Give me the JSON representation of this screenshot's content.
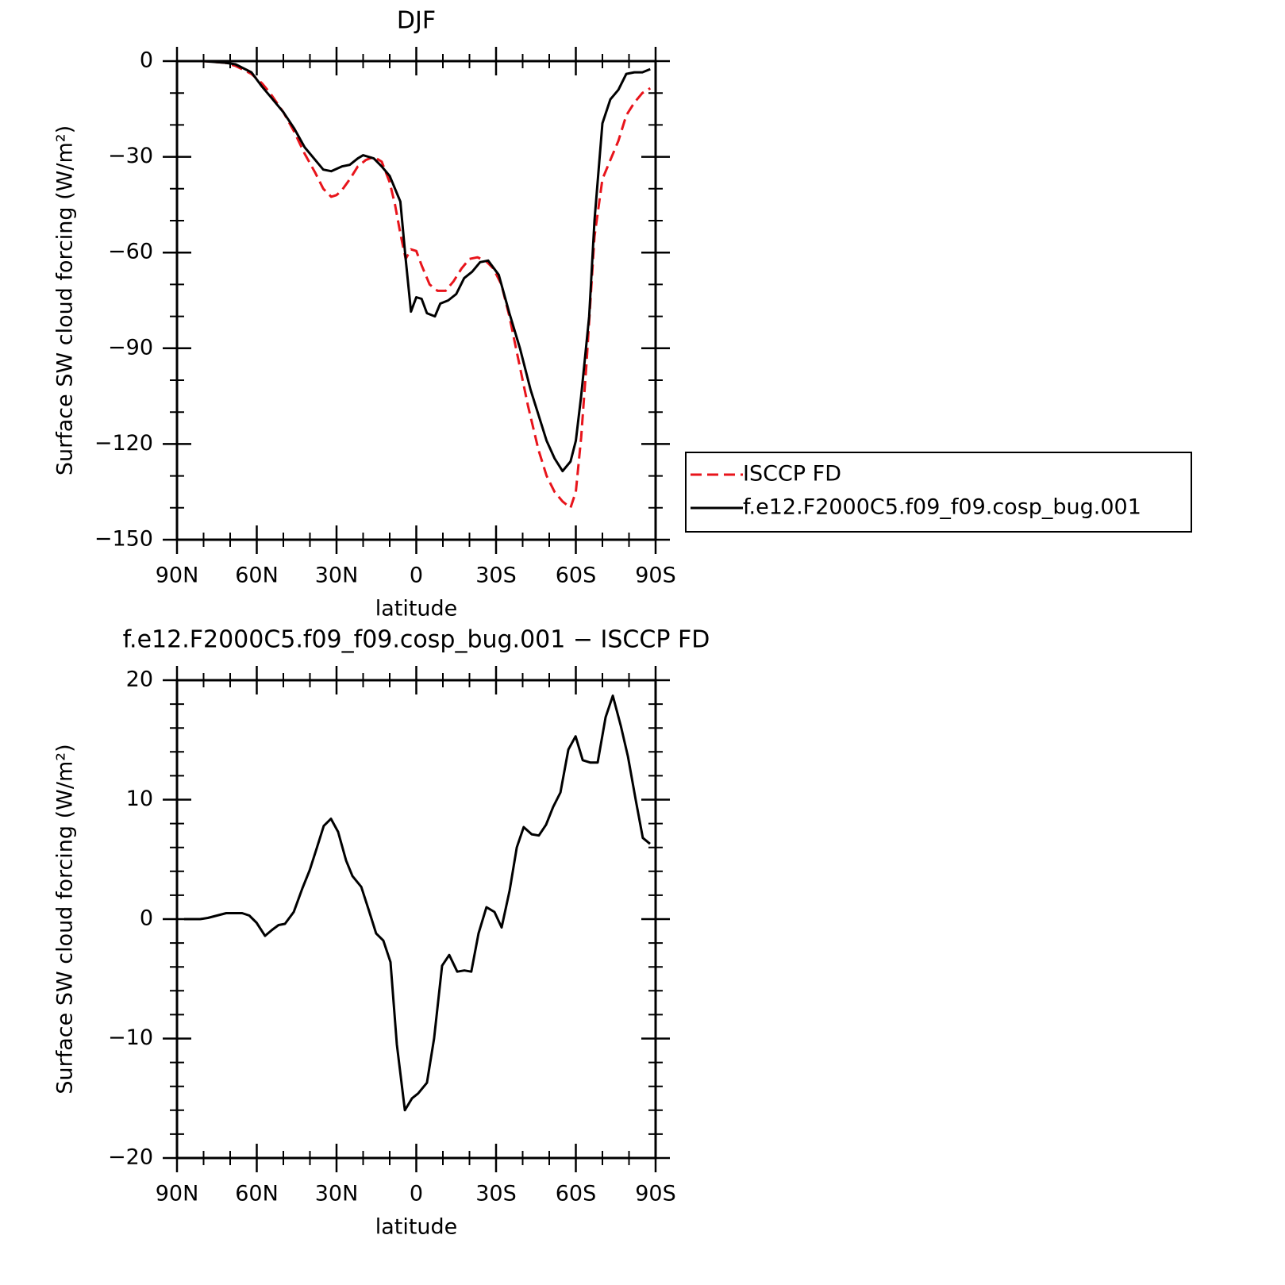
{
  "chart_data": [
    {
      "type": "line",
      "title": "DJF",
      "x_label": "latitude",
      "y_label": "Surface SW cloud forcing (W/m²)",
      "xlim": [
        90,
        -90
      ],
      "xticks": [
        {
          "value": 90,
          "label": "90N"
        },
        {
          "value": 60,
          "label": "60N"
        },
        {
          "value": 30,
          "label": "30N"
        },
        0,
        {
          "value": -30,
          "label": "30S"
        },
        {
          "value": -60,
          "label": "60S"
        },
        {
          "value": -90,
          "label": "90S"
        }
      ],
      "xminorticks": [
        80,
        70,
        50,
        40,
        20,
        10,
        -10,
        -20,
        -40,
        -50,
        -70,
        -80
      ],
      "ylim": [
        -150,
        0
      ],
      "yticks": [
        0,
        {
          "value": -30,
          "label": "−30"
        },
        {
          "value": -60,
          "label": "−60"
        },
        {
          "value": -90,
          "label": "−90"
        },
        {
          "value": -120,
          "label": "−120"
        },
        {
          "value": -150,
          "label": "−150"
        }
      ],
      "yminorticks": [
        -10,
        -20,
        -40,
        -50,
        -70,
        -80,
        -100,
        -110,
        -130,
        -140
      ],
      "legend": "right",
      "series": [
        {
          "name": "ISCCP FD",
          "color": "#e8141b",
          "style": "dashed",
          "x": [
            88,
            80,
            72,
            68,
            62,
            58,
            55,
            50,
            46,
            42,
            38,
            35,
            32,
            30,
            28,
            25,
            22,
            19,
            16,
            13,
            10,
            8,
            6,
            4,
            2,
            0,
            -2,
            -5,
            -8,
            -11,
            -14,
            -17,
            -20,
            -23,
            -26,
            -29,
            -32,
            -35,
            -38,
            -42,
            -46,
            -49,
            -52,
            -55,
            -58,
            -60,
            -62,
            -64,
            -67,
            -70,
            -73,
            -76,
            -79,
            -82,
            -85,
            -88
          ],
          "values": [
            0,
            0,
            -0.5,
            -1.5,
            -4,
            -7,
            -10,
            -16,
            -22,
            -29,
            -35,
            -40,
            -42.5,
            -42,
            -40.5,
            -37,
            -33,
            -31,
            -30,
            -31.5,
            -38,
            -45,
            -54,
            -62,
            -59,
            -59.5,
            -64,
            -70,
            -72,
            -72,
            -69,
            -65,
            -62,
            -61.5,
            -62.5,
            -65,
            -70,
            -80,
            -92,
            -108,
            -122,
            -130,
            -135,
            -138,
            -140,
            -135,
            -118,
            -95,
            -55,
            -37,
            -31,
            -25,
            -17,
            -13,
            -10,
            -8.5
          ]
        },
        {
          "name": "f.e12.F2000C5.f09_f09.cosp_bug.001",
          "color": "#000000",
          "style": "solid",
          "x": [
            88,
            80,
            72,
            68,
            62,
            58,
            55,
            50,
            46,
            42,
            38,
            35,
            32,
            28,
            25,
            22,
            20,
            16,
            13,
            10,
            6,
            4,
            2,
            0,
            -2,
            -4,
            -7,
            -9,
            -12,
            -15,
            -18,
            -21,
            -24,
            -27,
            -31,
            -35,
            -39,
            -43,
            -46,
            -49,
            -52,
            -55,
            -58,
            -60,
            -62,
            -65,
            -67,
            -70,
            -73,
            -76,
            -79,
            -82,
            -85,
            -88
          ],
          "values": [
            0,
            0,
            -0.5,
            -1,
            -3.5,
            -8,
            -11,
            -16,
            -21,
            -27,
            -31,
            -34,
            -34.5,
            -33,
            -32.5,
            -30.5,
            -29.5,
            -30.5,
            -33,
            -36,
            -44,
            -62,
            -78.5,
            -74,
            -74.5,
            -79,
            -80,
            -76,
            -75,
            -73,
            -68,
            -66,
            -63,
            -62.5,
            -67,
            -79,
            -90,
            -103,
            -111,
            -119,
            -124.5,
            -128.5,
            -125.5,
            -119,
            -105,
            -80,
            -50,
            -19.5,
            -12,
            -9,
            -4,
            -3.5,
            -3.5,
            -2.5
          ]
        }
      ]
    },
    {
      "type": "line",
      "title": "f.e12.F2000C5.f09_f09.cosp_bug.001 − ISCCP FD",
      "x_label": "latitude",
      "y_label": "Surface SW cloud forcing (W/m²)",
      "xlim": [
        90,
        -90
      ],
      "xticks": [
        {
          "value": 90,
          "label": "90N"
        },
        {
          "value": 60,
          "label": "60N"
        },
        {
          "value": 30,
          "label": "30N"
        },
        0,
        {
          "value": -30,
          "label": "30S"
        },
        {
          "value": -60,
          "label": "60S"
        },
        {
          "value": -90,
          "label": "90S"
        }
      ],
      "xminorticks": [
        80,
        70,
        50,
        40,
        20,
        10,
        -10,
        -20,
        -40,
        -50,
        -70,
        -80
      ],
      "ylim": [
        -20,
        20
      ],
      "yticks": [
        20,
        10,
        0,
        {
          "value": -10,
          "label": "−10"
        },
        {
          "value": -20,
          "label": "−20"
        }
      ],
      "yminorticks": [
        18,
        16,
        14,
        12,
        8,
        6,
        4,
        2,
        -2,
        -4,
        -6,
        -8,
        -12,
        -14,
        -16,
        -18
      ],
      "series": [
        {
          "color": "#000000",
          "style": "solid",
          "x": [
            87.3,
            81.3,
            78.4,
            71.5,
            68.5,
            65.5,
            62.8,
            60.1,
            56.9,
            54.2,
            51.8,
            49.4,
            46.1,
            42.8,
            40.1,
            37.5,
            34.8,
            32.1,
            29.4,
            26.4,
            24.0,
            20.7,
            17.8,
            15.1,
            12.4,
            9.7,
            7.3,
            4.3,
            1.6,
            -0.7,
            -4.0,
            -6.7,
            -9.7,
            -12.4,
            -15.4,
            -18.1,
            -20.7,
            -23.4,
            -26.4,
            -29.4,
            -32.1,
            -35.1,
            -37.8,
            -40.4,
            -43.4,
            -46.1,
            -48.8,
            -51.5,
            -54.2,
            -57.2,
            -59.9,
            -62.6,
            -65.5,
            -68.2,
            -71.2,
            -73.9,
            -76.9,
            -79.6,
            -82.5,
            -85.2,
            -87.9
          ],
          "values": [
            0,
            0,
            0.1,
            0.5,
            0.5,
            0.5,
            0.3,
            -0.3,
            -1.4,
            -0.9,
            -0.5,
            -0.4,
            0.6,
            2.6,
            4.1,
            5.9,
            7.8,
            8.4,
            7.3,
            4.9,
            3.6,
            2.7,
            0.7,
            -1.2,
            -1.8,
            -3.6,
            -10.5,
            -16,
            -15,
            -14.6,
            -13.7,
            -10,
            -3.9,
            -3,
            -4.4,
            -4.3,
            -4.4,
            -1.2,
            1,
            0.6,
            -0.7,
            2.4,
            6,
            7.7,
            7.1,
            7.0,
            7.9,
            9.4,
            10.6,
            14.2,
            15.3,
            13.3,
            13.1,
            13.1,
            16.9,
            18.7,
            16.2,
            13.6,
            10,
            6.8,
            6.3
          ]
        }
      ]
    }
  ]
}
